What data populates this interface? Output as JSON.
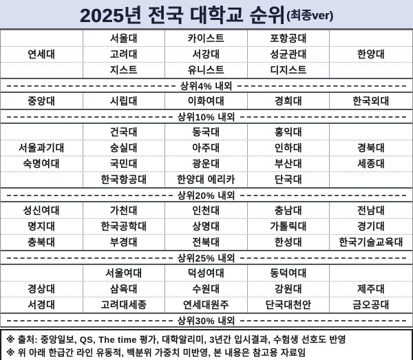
{
  "title": {
    "main": "2025년 전국 대학교 순위",
    "suffix": "(최종ver)"
  },
  "table": {
    "columns": 5,
    "groups": [
      {
        "rows": [
          [
            "",
            "서울대",
            "카이스트",
            "포항공대",
            ""
          ],
          [
            "연세대",
            "고려대",
            "서강대",
            "성균관대",
            "한양대"
          ],
          [
            "",
            "지스트",
            "유니스트",
            "디지스트",
            ""
          ]
        ],
        "separator": "상위4% 내외"
      },
      {
        "rows": [
          [
            "중앙대",
            "시립대",
            "이화여대",
            "경희대",
            "한국외대"
          ]
        ],
        "separator": "상위10% 내외"
      },
      {
        "rows": [
          [
            "",
            "건국대",
            "동국대",
            "홍익대",
            ""
          ],
          [
            "서울과기대",
            "숭실대",
            "아주대",
            "인하대",
            "경북대"
          ],
          [
            "숙명여대",
            "국민대",
            "광운대",
            "부산대",
            "세종대"
          ],
          [
            "",
            "한국항공대",
            "한양대 에리카",
            "단국대",
            ""
          ]
        ],
        "separator": "상위20% 내외"
      },
      {
        "rows": [
          [
            "성신여대",
            "가천대",
            "인천대",
            "충남대",
            "전남대"
          ],
          [
            "명지대",
            "한국공학대",
            "상명대",
            "가톨릭대",
            "경기대"
          ],
          [
            "충북대",
            "부경대",
            "전북대",
            "한성대",
            "한국기술교육대"
          ]
        ],
        "separator": "상위25% 내외"
      },
      {
        "rows": [
          [
            "",
            "서울여대",
            "덕성여대",
            "동덕여대",
            ""
          ],
          [
            "경상대",
            "삼육대",
            "수원대",
            "강원대",
            "제주대"
          ],
          [
            "서경대",
            "고려대세종",
            "연세대원주",
            "단국대천안",
            "금오공대"
          ]
        ],
        "separator": "상위30% 내외"
      }
    ]
  },
  "footer": {
    "notes": [
      "※ 출처: 중앙일보, QS, The time 평가, 대학알리미, 3년간 입시결과, 수험생 선호도 반영",
      "※ 위 아래 한급간 라인 유동적, 백분위 가중치 미반영, 본 내용은 참고용 자료임"
    ]
  },
  "colors": {
    "title_background": "#dadff0",
    "title_text": "#1b2137",
    "separator_line": "#4f545a",
    "cell_border": "#9aa0a5",
    "footer_border": "#1d1d1d"
  }
}
